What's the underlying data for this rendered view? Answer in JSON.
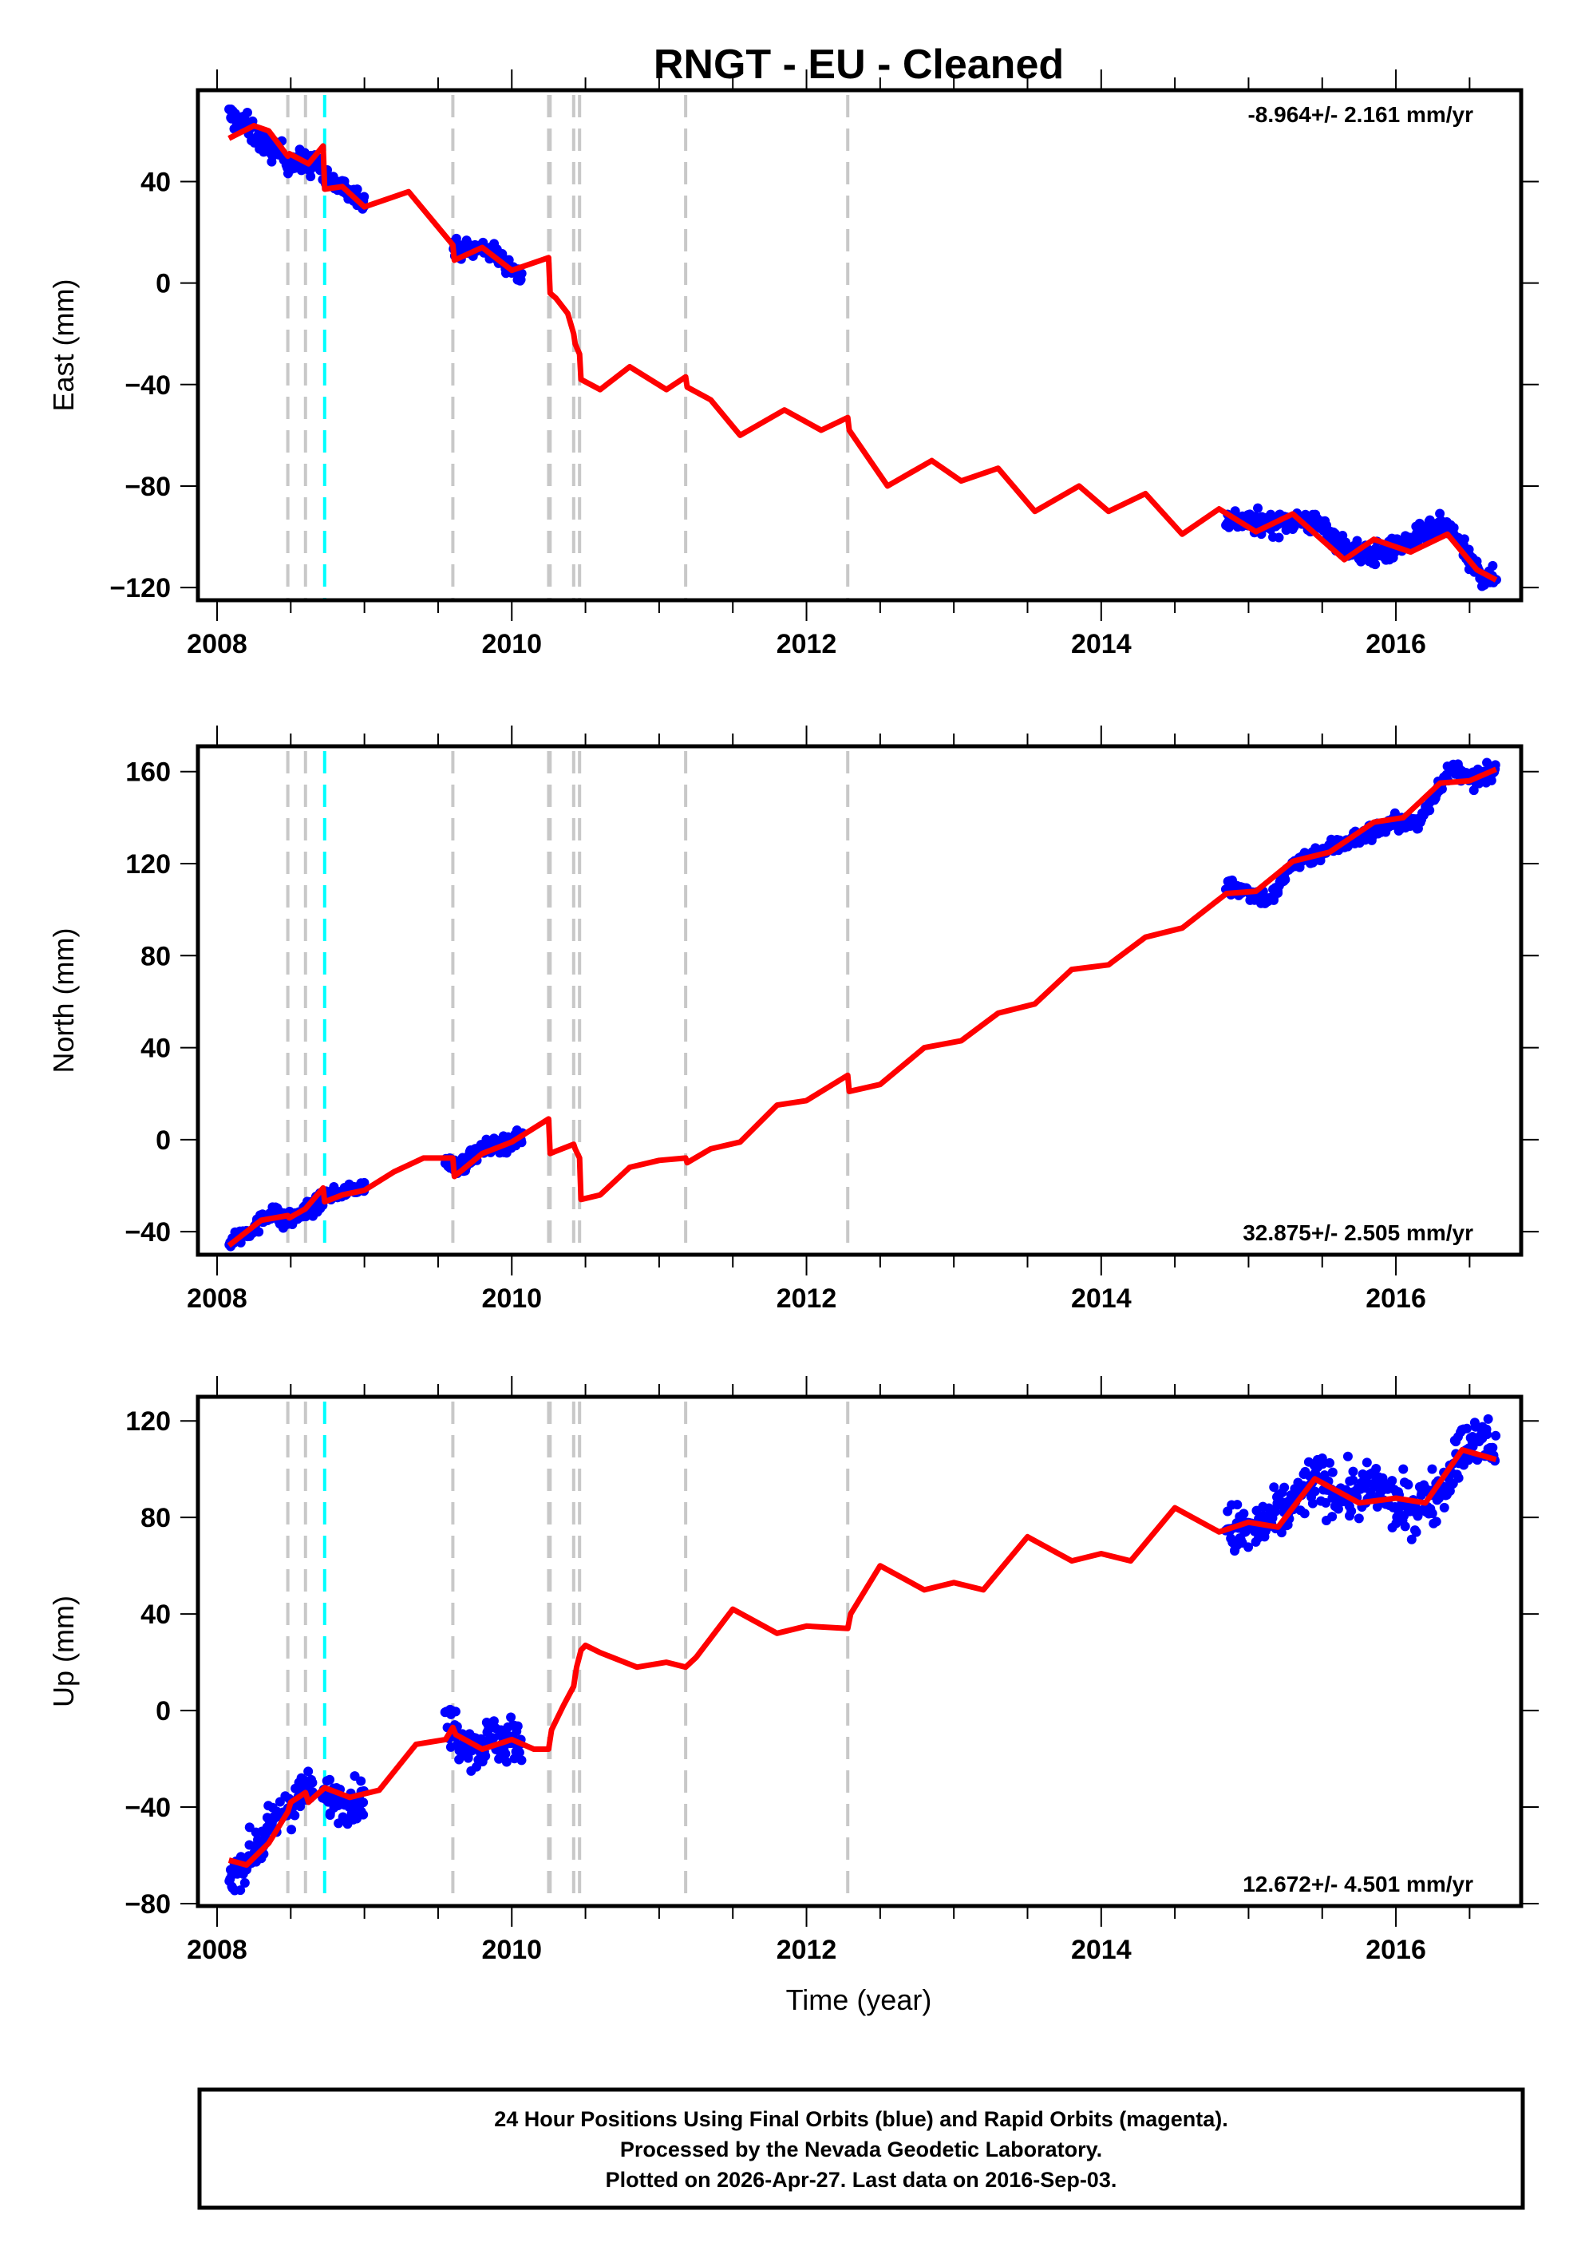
{
  "title": "RNGT  - EU - Cleaned",
  "xlabel": "Time (year)",
  "footer": {
    "lines": [
      "24 Hour Positions Using Final Orbits (blue) and Rapid Orbits (magenta).",
      "Processed by the Nevada Geodetic Laboratory.",
      "Plotted on 2026-Apr-27. Last data on 2016-Sep-03."
    ]
  },
  "colors": {
    "data_points": "#0000ff",
    "model_line": "#ff0000",
    "event_line": "#c8c8c8",
    "equipment_change_line": "#00ffff",
    "frame": "#000000"
  },
  "chart_data": [
    {
      "type": "scatter",
      "name": "east",
      "title": "RNGT  - EU - Cleaned",
      "ylabel": "East (mm)",
      "xlabel": "",
      "xlim": [
        2007.87,
        2016.85
      ],
      "ylim": [
        -125,
        76
      ],
      "xticks": [
        2008,
        2010,
        2012,
        2014,
        2016
      ],
      "xminor_step": 0.5,
      "yticks": [
        -120,
        -80,
        -40,
        0,
        40
      ],
      "yminor_step": 20,
      "grid": false,
      "rate_label": "-8.964+/- 2.161 mm/yr",
      "rate_label_position": "top-right",
      "event_lines_gray": [
        2008.48,
        2008.6,
        2009.6,
        2010.25,
        2010.26,
        2010.42,
        2010.46,
        2011.18,
        2012.28
      ],
      "event_lines_cyan": [
        2008.73
      ],
      "data_segments": [
        {
          "x": [
            2008.08,
            2008.2,
            2008.3,
            2008.4,
            2008.5,
            2008.6,
            2008.7
          ],
          "y": [
            66,
            62,
            56,
            52,
            48,
            47,
            47
          ],
          "noise": 4
        },
        {
          "x": [
            2008.72,
            2008.8,
            2008.9,
            2009.0
          ],
          "y": [
            41,
            39,
            36,
            33
          ],
          "noise": 3
        },
        {
          "x": [
            2009.6,
            2009.7,
            2009.8,
            2009.9,
            2010.0,
            2010.07
          ],
          "y": [
            14,
            13,
            14,
            11,
            6,
            2
          ],
          "noise": 3
        },
        {
          "x": [
            2014.85,
            2015.0,
            2015.2,
            2015.35,
            2015.5,
            2015.65,
            2015.8,
            2015.95,
            2016.0,
            2016.15,
            2016.3,
            2016.4,
            2016.5,
            2016.6,
            2016.68
          ],
          "y": [
            -93,
            -94,
            -95,
            -93,
            -96,
            -104,
            -107,
            -106,
            -104,
            -100,
            -96,
            -99,
            -110,
            -116,
            -117
          ],
          "noise": 3.5
        }
      ],
      "model": {
        "x": [
          2008.08,
          2008.25,
          2008.35,
          2008.48,
          2008.49,
          2008.62,
          2008.72,
          2008.73,
          2008.85,
          2009.0,
          2009.3,
          2009.6,
          2009.61,
          2009.8,
          2010.0,
          2010.25,
          2010.26,
          2010.3,
          2010.38,
          2010.42,
          2010.43,
          2010.46,
          2010.47,
          2010.6,
          2010.8,
          2011.05,
          2011.18,
          2011.19,
          2011.35,
          2011.55,
          2011.85,
          2012.1,
          2012.28,
          2012.29,
          2012.55,
          2012.85,
          2013.05,
          2013.3,
          2013.55,
          2013.85,
          2014.05,
          2014.3,
          2014.55,
          2014.8,
          2015.05,
          2015.3,
          2015.65,
          2015.85,
          2016.1,
          2016.35,
          2016.55,
          2016.68
        ],
        "y": [
          57,
          62,
          60,
          50,
          51,
          47,
          54,
          37,
          38,
          30,
          36,
          15,
          9,
          14,
          5,
          10,
          -4,
          -6,
          -12,
          -20,
          -24,
          -28,
          -38,
          -42,
          -33,
          -42,
          -37,
          -41,
          -46,
          -60,
          -50,
          -58,
          -53,
          -58,
          -80,
          -70,
          -78,
          -73,
          -90,
          -80,
          -90,
          -83,
          -99,
          -89,
          -98,
          -91,
          -109,
          -101,
          -106,
          -99,
          -113,
          -117
        ]
      }
    },
    {
      "type": "scatter",
      "name": "north",
      "ylabel": "North (mm)",
      "xlabel": "",
      "xlim": [
        2007.87,
        2016.85
      ],
      "ylim": [
        -50,
        171
      ],
      "xticks": [
        2008,
        2010,
        2012,
        2014,
        2016
      ],
      "xminor_step": 0.5,
      "yticks": [
        -40,
        0,
        40,
        80,
        120,
        160
      ],
      "yminor_step": 20,
      "grid": false,
      "rate_label": "32.875+/- 2.505 mm/yr",
      "rate_label_position": "bottom-right",
      "event_lines_gray": [
        2008.48,
        2008.6,
        2009.6,
        2010.25,
        2010.26,
        2010.42,
        2010.46,
        2011.18,
        2012.28
      ],
      "event_lines_cyan": [
        2008.73
      ],
      "data_segments": [
        {
          "x": [
            2008.08,
            2008.2,
            2008.3,
            2008.38,
            2008.45,
            2008.55,
            2008.65,
            2008.72
          ],
          "y": [
            -44,
            -40,
            -36,
            -30,
            -36,
            -33,
            -29,
            -27
          ],
          "noise": 3
        },
        {
          "x": [
            2008.73,
            2008.85,
            2009.0
          ],
          "y": [
            -24,
            -23,
            -20
          ],
          "noise": 2
        },
        {
          "x": [
            2009.55,
            2009.65,
            2009.75,
            2009.85,
            2010.0,
            2010.07
          ],
          "y": [
            -10,
            -12,
            -6,
            -3,
            -1,
            1
          ],
          "noise": 3
        },
        {
          "x": [
            2014.85,
            2015.0,
            2015.15,
            2015.3,
            2015.45,
            2015.6,
            2015.8,
            2016.0,
            2016.15,
            2016.3,
            2016.4,
            2016.5,
            2016.68
          ],
          "y": [
            110,
            108,
            104,
            120,
            124,
            128,
            133,
            138,
            137,
            155,
            162,
            156,
            160
          ],
          "noise": 3
        }
      ],
      "model": {
        "x": [
          2008.08,
          2008.3,
          2008.48,
          2008.49,
          2008.6,
          2008.72,
          2008.73,
          2008.85,
          2009.0,
          2009.2,
          2009.4,
          2009.6,
          2009.61,
          2009.8,
          2010.0,
          2010.25,
          2010.26,
          2010.3,
          2010.42,
          2010.43,
          2010.46,
          2010.47,
          2010.6,
          2010.8,
          2011.0,
          2011.18,
          2011.19,
          2011.35,
          2011.55,
          2011.8,
          2012.0,
          2012.28,
          2012.29,
          2012.5,
          2012.8,
          2013.05,
          2013.3,
          2013.55,
          2013.8,
          2014.05,
          2014.3,
          2014.55,
          2014.85,
          2015.05,
          2015.3,
          2015.55,
          2015.85,
          2016.05,
          2016.3,
          2016.5,
          2016.68
        ],
        "y": [
          -46,
          -35,
          -33,
          -34,
          -30,
          -21,
          -27,
          -24,
          -22,
          -14,
          -8,
          -8,
          -16,
          -6,
          -1,
          9,
          -6,
          -5,
          -2,
          -4,
          -8,
          -26,
          -24,
          -12,
          -9,
          -8,
          -10,
          -4,
          -1,
          15,
          17,
          28,
          21,
          24,
          40,
          43,
          55,
          59,
          74,
          76,
          88,
          92,
          107,
          108,
          121,
          125,
          138,
          140,
          155,
          156,
          161
        ]
      }
    },
    {
      "type": "scatter",
      "name": "up",
      "ylabel": "Up (mm)",
      "xlabel": "Time (year)",
      "xlim": [
        2007.87,
        2016.85
      ],
      "ylim": [
        -81,
        130
      ],
      "xticks": [
        2008,
        2010,
        2012,
        2014,
        2016
      ],
      "xminor_step": 0.5,
      "yticks": [
        -80,
        -40,
        0,
        40,
        80,
        120
      ],
      "yminor_step": 20,
      "grid": false,
      "rate_label": "12.672+/- 4.501 mm/yr",
      "rate_label_position": "bottom-right",
      "event_lines_gray": [
        2008.48,
        2008.6,
        2009.6,
        2010.25,
        2010.26,
        2010.42,
        2010.46,
        2011.18,
        2012.28
      ],
      "event_lines_cyan": [
        2008.73
      ],
      "data_segments": [
        {
          "x": [
            2008.08,
            2008.15,
            2008.25,
            2008.35,
            2008.45,
            2008.55,
            2008.65
          ],
          "y": [
            -68,
            -65,
            -58,
            -50,
            -42,
            -36,
            -33
          ],
          "noise": 7
        },
        {
          "x": [
            2008.72,
            2008.8,
            2008.9,
            2009.0
          ],
          "y": [
            -35,
            -36,
            -38,
            -36
          ],
          "noise": 7
        },
        {
          "x": [
            2009.55,
            2009.65,
            2009.75,
            2009.85,
            2009.95,
            2010.07
          ],
          "y": [
            -5,
            -10,
            -15,
            -12,
            -12,
            -12
          ],
          "noise": 8
        },
        {
          "x": [
            2014.85,
            2015.0,
            2015.15,
            2015.3,
            2015.45,
            2015.6,
            2015.75,
            2015.9,
            2016.0,
            2016.15,
            2016.3,
            2016.45,
            2016.6,
            2016.68
          ],
          "y": [
            75,
            74,
            78,
            86,
            96,
            90,
            90,
            92,
            85,
            84,
            92,
            108,
            112,
            106
          ],
          "noise": 9
        }
      ],
      "model": {
        "x": [
          2008.08,
          2008.2,
          2008.35,
          2008.48,
          2008.5,
          2008.6,
          2008.62,
          2008.73,
          2008.9,
          2009.1,
          2009.35,
          2009.55,
          2009.6,
          2009.62,
          2009.8,
          2010.0,
          2010.15,
          2010.25,
          2010.27,
          2010.35,
          2010.42,
          2010.44,
          2010.47,
          2010.5,
          2010.6,
          2010.85,
          2011.05,
          2011.18,
          2011.25,
          2011.5,
          2011.8,
          2012.0,
          2012.28,
          2012.3,
          2012.5,
          2012.8,
          2013.0,
          2013.2,
          2013.5,
          2013.8,
          2014.0,
          2014.2,
          2014.5,
          2014.8,
          2015.0,
          2015.2,
          2015.45,
          2015.75,
          2016.0,
          2016.2,
          2016.45,
          2016.68
        ],
        "y": [
          -62,
          -64,
          -55,
          -42,
          -38,
          -34,
          -38,
          -32,
          -36,
          -33,
          -14,
          -12,
          -7,
          -10,
          -16,
          -12,
          -16,
          -16,
          -8,
          2,
          10,
          18,
          25,
          27,
          24,
          18,
          20,
          18,
          22,
          42,
          32,
          35,
          34,
          40,
          60,
          50,
          53,
          50,
          72,
          62,
          65,
          62,
          84,
          74,
          78,
          76,
          96,
          86,
          88,
          86,
          108,
          104
        ]
      }
    }
  ]
}
